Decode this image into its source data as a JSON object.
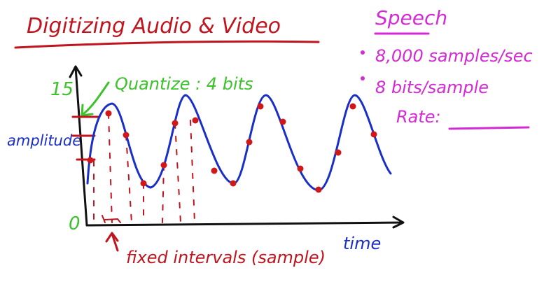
{
  "title": "Digitizing Audio & Video",
  "quantize_label": "Quantize : 4 bits",
  "y_axis": {
    "top_tick": "15",
    "bottom_tick": "0",
    "label": "amplitude"
  },
  "x_axis": {
    "label": "time"
  },
  "sampling_note": "fixed intervals (sample)",
  "speech": {
    "heading": "Speech",
    "bullets": [
      "8,000 samples/sec",
      "8 bits/sample"
    ],
    "rate_label": "Rate:"
  },
  "colors": {
    "title_red": "#c0141e",
    "green": "#3cc22a",
    "magenta": "#d42ad4",
    "blue": "#1a2fc8",
    "dot_red": "#d01818",
    "axis_black": "#111111"
  }
}
